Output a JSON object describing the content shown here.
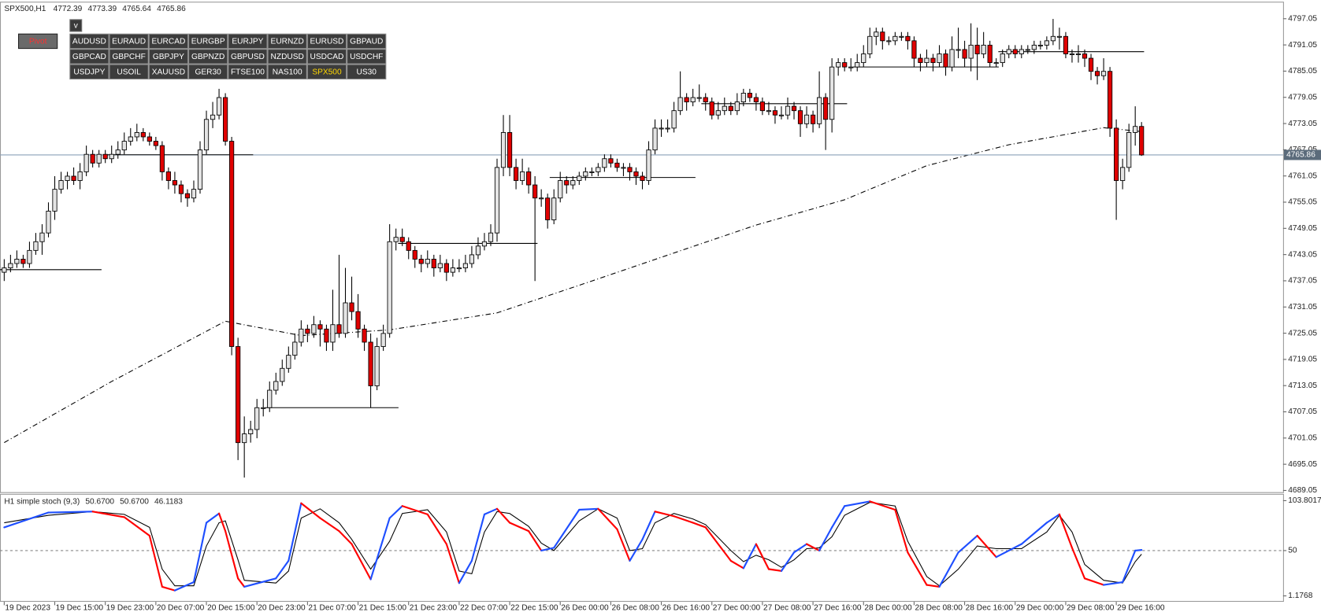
{
  "toolbar": {
    "pivot": "Pivot",
    "toggle": "v",
    "symbols": [
      [
        "AUDUSD",
        "EURAUD",
        "EURCAD",
        "EURGBP",
        "EURJPY",
        "EURNZD",
        "EURUSD",
        "GBPAUD"
      ],
      [
        "GBPCAD",
        "GBPCHF",
        "GBPJPY",
        "GBPNZD",
        "GBPUSD",
        "NZDUSD",
        "USDCAD",
        "USDCHF"
      ],
      [
        "USDJPY",
        "USOIL",
        "XAUUSD",
        "GER30",
        "FTSE100",
        "NAS100",
        "SPX500",
        "US30"
      ]
    ],
    "active": [
      2,
      6
    ],
    "active_color": "#ffd700"
  },
  "chart_data": {
    "type": "candlestick",
    "title": "SPX500,H1",
    "up_color": "#e4e4e4",
    "down_color": "#e00000",
    "ylim": [
      4688.66,
      4800.75
    ],
    "yticks": [
      4797.05,
      4791.05,
      4785.05,
      4779.05,
      4773.05,
      4767.05,
      4761.05,
      4755.05,
      4749.05,
      4743.05,
      4737.05,
      4731.05,
      4725.05,
      4719.05,
      4713.05,
      4707.05,
      4701.05,
      4695.05,
      4689.05
    ],
    "x_labels": [
      "19 Dec 2023",
      "19 Dec 15:00",
      "19 Dec 23:00",
      "20 Dec 07:00",
      "20 Dec 15:00",
      "20 Dec 23:00",
      "21 Dec 07:00",
      "21 Dec 15:00",
      "21 Dec 23:00",
      "22 Dec 07:00",
      "22 Dec 15:00",
      "26 Dec 00:00",
      "26 Dec 08:00",
      "26 Dec 16:00",
      "27 Dec 00:00",
      "27 Dec 08:00",
      "27 Dec 16:00",
      "28 Dec 00:00",
      "28 Dec 08:00",
      "28 Dec 16:00",
      "29 Dec 00:00",
      "29 Dec 08:00",
      "29 Dec 16:00"
    ],
    "ohlc": [
      [
        4739,
        4742,
        4737,
        4740
      ],
      [
        4740,
        4743,
        4739,
        4741
      ],
      [
        4741,
        4744,
        4740,
        4742
      ],
      [
        4742,
        4743,
        4740,
        4741
      ],
      [
        4741,
        4746,
        4740,
        4744
      ],
      [
        4744,
        4748,
        4743,
        4746
      ],
      [
        4746,
        4750,
        4743,
        4748
      ],
      [
        4748,
        4755,
        4747,
        4753
      ],
      [
        4753,
        4761,
        4751,
        4758
      ],
      [
        4758,
        4762,
        4757,
        4760
      ],
      [
        4760,
        4762,
        4758,
        4761
      ],
      [
        4761,
        4763,
        4759,
        4760
      ],
      [
        4760,
        4764,
        4758,
        4762
      ],
      [
        4762,
        4768,
        4761,
        4766
      ],
      [
        4766,
        4767,
        4763,
        4764
      ],
      [
        4764,
        4767,
        4763,
        4766
      ],
      [
        4766,
        4767,
        4764,
        4765
      ],
      [
        4765,
        4768,
        4764,
        4766
      ],
      [
        4766,
        4769,
        4765,
        4767
      ],
      [
        4767,
        4771,
        4766,
        4769
      ],
      [
        4769,
        4772,
        4768,
        4770
      ],
      [
        4770,
        4773,
        4769,
        4771
      ],
      [
        4771,
        4772,
        4769,
        4770
      ],
      [
        4770,
        4771,
        4768,
        4769
      ],
      [
        4769,
        4770,
        4767,
        4768
      ],
      [
        4768,
        4769,
        4760,
        4762
      ],
      [
        4762,
        4763,
        4758,
        4760
      ],
      [
        4760,
        4762,
        4757,
        4759
      ],
      [
        4759,
        4760,
        4755,
        4757
      ],
      [
        4757,
        4758,
        4754,
        4756
      ],
      [
        4756,
        4760,
        4755,
        4758
      ],
      [
        4758,
        4769,
        4757,
        4767
      ],
      [
        4767,
        4776,
        4766,
        4774
      ],
      [
        4774,
        4778,
        4772,
        4775
      ],
      [
        4775,
        4781,
        4774,
        4779
      ],
      [
        4779,
        4780,
        4768,
        4769
      ],
      [
        4769,
        4770,
        4720,
        4722
      ],
      [
        4722,
        4724,
        4696,
        4700
      ],
      [
        4700,
        4706,
        4692,
        4702
      ],
      [
        4702,
        4705,
        4700,
        4703
      ],
      [
        4703,
        4710,
        4701,
        4708
      ],
      [
        4708,
        4710,
        4706,
        4708
      ],
      [
        4708,
        4714,
        4707,
        4712
      ],
      [
        4712,
        4716,
        4711,
        4714
      ],
      [
        4714,
        4719,
        4713,
        4717
      ],
      [
        4717,
        4722,
        4716,
        4720
      ],
      [
        4720,
        4725,
        4719,
        4723
      ],
      [
        4723,
        4728,
        4722,
        4726
      ],
      [
        4726,
        4727,
        4723,
        4725
      ],
      [
        4725,
        4729,
        4724,
        4727
      ],
      [
        4727,
        4728,
        4722,
        4726
      ],
      [
        4726,
        4727,
        4721,
        4723
      ],
      [
        4723,
        4735,
        4721,
        4727
      ],
      [
        4727,
        4743,
        4724,
        4725
      ],
      [
        4725,
        4740,
        4724,
        4732
      ],
      [
        4732,
        4738,
        4728,
        4730
      ],
      [
        4730,
        4734,
        4724,
        4726
      ],
      [
        4726,
        4727,
        4721,
        4723
      ],
      [
        4723,
        4725,
        4708,
        4713
      ],
      [
        4713,
        4724,
        4712,
        4722
      ],
      [
        4722,
        4727,
        4721,
        4725
      ],
      [
        4725,
        4750,
        4724,
        4746
      ],
      [
        4746,
        4749,
        4744,
        4747
      ],
      [
        4747,
        4749,
        4745,
        4746
      ],
      [
        4746,
        4747,
        4742,
        4744
      ],
      [
        4744,
        4745,
        4740,
        4742
      ],
      [
        4742,
        4743,
        4739,
        4741
      ],
      [
        4741,
        4744,
        4740,
        4742
      ],
      [
        4742,
        4743,
        4738,
        4740
      ],
      [
        4740,
        4743,
        4739,
        4741
      ],
      [
        4741,
        4742,
        4737,
        4739
      ],
      [
        4739,
        4742,
        4738,
        4740
      ],
      [
        4740,
        4742,
        4739,
        4740
      ],
      [
        4740,
        4743,
        4739,
        4741
      ],
      [
        4741,
        4745,
        4740,
        4743
      ],
      [
        4743,
        4747,
        4742,
        4745
      ],
      [
        4745,
        4748,
        4744,
        4746
      ],
      [
        4746,
        4750,
        4745,
        4748
      ],
      [
        4748,
        4765,
        4746,
        4763
      ],
      [
        4763,
        4775,
        4761,
        4771
      ],
      [
        4771,
        4775,
        4761,
        4763
      ],
      [
        4763,
        4765,
        4758,
        4760
      ],
      [
        4760,
        4765,
        4759,
        4762
      ],
      [
        4762,
        4763,
        4757,
        4759
      ],
      [
        4759,
        4761,
        4737,
        4756
      ],
      [
        4756,
        4758,
        4754,
        4756
      ],
      [
        4756,
        4757,
        4749,
        4751
      ],
      [
        4751,
        4758,
        4750,
        4756
      ],
      [
        4756,
        4762,
        4755,
        4760
      ],
      [
        4760,
        4761,
        4757,
        4759
      ],
      [
        4759,
        4761,
        4758,
        4760
      ],
      [
        4760,
        4762,
        4759,
        4761
      ],
      [
        4761,
        4763,
        4760,
        4762
      ],
      [
        4762,
        4763,
        4761,
        4762
      ],
      [
        4762,
        4764,
        4761,
        4763
      ],
      [
        4763,
        4766,
        4762,
        4765
      ],
      [
        4765,
        4766,
        4763,
        4764
      ],
      [
        4764,
        4765,
        4762,
        4763
      ],
      [
        4763,
        4764,
        4761,
        4763
      ],
      [
        4763,
        4764,
        4760,
        4762
      ],
      [
        4762,
        4763,
        4759,
        4761
      ],
      [
        4761,
        4762,
        4758,
        4760
      ],
      [
        4760,
        4769,
        4759,
        4767
      ],
      [
        4767,
        4774,
        4766,
        4772
      ],
      [
        4772,
        4774,
        4770,
        4772
      ],
      [
        4772,
        4774,
        4771,
        4772
      ],
      [
        4772,
        4778,
        4771,
        4776
      ],
      [
        4776,
        4785,
        4775,
        4779
      ],
      [
        4779,
        4780,
        4776,
        4778
      ],
      [
        4778,
        4781,
        4777,
        4779
      ],
      [
        4779,
        4782,
        4778,
        4779
      ],
      [
        4779,
        4780,
        4776,
        4778
      ],
      [
        4778,
        4779,
        4774,
        4775
      ],
      [
        4775,
        4778,
        4774,
        4776
      ],
      [
        4776,
        4779,
        4775,
        4777
      ],
      [
        4777,
        4778,
        4775,
        4776
      ],
      [
        4776,
        4780,
        4775,
        4778
      ],
      [
        4778,
        4781,
        4777,
        4780
      ],
      [
        4780,
        4781,
        4778,
        4779
      ],
      [
        4779,
        4780,
        4776,
        4778
      ],
      [
        4778,
        4779,
        4775,
        4776
      ],
      [
        4776,
        4778,
        4775,
        4776
      ],
      [
        4776,
        4777,
        4773,
        4775
      ],
      [
        4775,
        4777,
        4774,
        4775
      ],
      [
        4775,
        4779,
        4774,
        4777
      ],
      [
        4777,
        4778,
        4774,
        4776
      ],
      [
        4776,
        4777,
        4770,
        4773
      ],
      [
        4773,
        4777,
        4772,
        4775
      ],
      [
        4775,
        4776,
        4771,
        4773
      ],
      [
        4773,
        4785,
        4772,
        4779
      ],
      [
        4779,
        4780,
        4767,
        4774
      ],
      [
        4774,
        4788,
        4771,
        4786
      ],
      [
        4786,
        4788,
        4784,
        4787
      ],
      [
        4787,
        4788,
        4785,
        4786
      ],
      [
        4786,
        4788,
        4785,
        4786
      ],
      [
        4786,
        4789,
        4785,
        4787
      ],
      [
        4787,
        4791,
        4786,
        4789
      ],
      [
        4789,
        4795,
        4788,
        4793
      ],
      [
        4793,
        4795,
        4791,
        4794
      ],
      [
        4794,
        4795,
        4790,
        4792
      ],
      [
        4792,
        4793,
        4791,
        4792
      ],
      [
        4792,
        4794,
        4791,
        4793
      ],
      [
        4793,
        4794,
        4792,
        4793
      ],
      [
        4793,
        4794,
        4790,
        4792
      ],
      [
        4792,
        4793,
        4786,
        4788
      ],
      [
        4788,
        4789,
        4785,
        4787
      ],
      [
        4787,
        4790,
        4786,
        4788
      ],
      [
        4788,
        4789,
        4785,
        4787
      ],
      [
        4787,
        4791,
        4786,
        4789
      ],
      [
        4789,
        4790,
        4784,
        4786
      ],
      [
        4786,
        4793,
        4785,
        4790
      ],
      [
        4790,
        4795,
        4788,
        4790
      ],
      [
        4790,
        4792,
        4786,
        4788
      ],
      [
        4788,
        4796,
        4785,
        4791
      ],
      [
        4791,
        4795,
        4783,
        4789
      ],
      [
        4789,
        4794,
        4788,
        4791
      ],
      [
        4791,
        4792,
        4786,
        4787
      ],
      [
        4787,
        4788,
        4786,
        4787
      ],
      [
        4787,
        4790,
        4786,
        4789
      ],
      [
        4789,
        4791,
        4788,
        4790
      ],
      [
        4790,
        4791,
        4788,
        4789
      ],
      [
        4789,
        4791,
        4788,
        4790
      ],
      [
        4790,
        4791,
        4789,
        4790
      ],
      [
        4790,
        4792,
        4789,
        4791
      ],
      [
        4791,
        4792,
        4790,
        4791
      ],
      [
        4791,
        4793,
        4790,
        4792
      ],
      [
        4792,
        4797,
        4791,
        4793
      ],
      [
        4793,
        4795,
        4790,
        4793
      ],
      [
        4793,
        4794,
        4788,
        4789
      ],
      [
        4789,
        4790,
        4787,
        4789
      ],
      [
        4789,
        4791,
        4787,
        4789
      ],
      [
        4789,
        4790,
        4786,
        4788
      ],
      [
        4788,
        4789,
        4783,
        4785
      ],
      [
        4785,
        4786,
        4782,
        4784
      ],
      [
        4784,
        4788,
        4783,
        4785
      ],
      [
        4785,
        4786,
        4770,
        4772
      ],
      [
        4772,
        4774,
        4751,
        4760
      ],
      [
        4760,
        4765,
        4758,
        4763
      ],
      [
        4763,
        4773,
        4762,
        4771
      ],
      [
        4771,
        4777,
        4768,
        4772.39
      ],
      [
        4772.39,
        4773.39,
        4765.64,
        4765.86
      ]
    ],
    "ma": {
      "x": [
        0,
        17,
        35,
        47,
        61,
        78,
        93,
        109,
        119,
        133,
        146,
        159,
        174,
        180
      ],
      "values": [
        4700,
        4714,
        4727.8,
        4724.5,
        4725.8,
        4729.7,
        4737,
        4744.9,
        4749.8,
        4755.6,
        4763.4,
        4768.2,
        4772.1,
        4771.2
      ]
    },
    "levels": [
      {
        "price": 4739.6,
        "start": 0,
        "end": 15
      },
      {
        "price": 4765.9,
        "start": 17,
        "end": 39
      },
      {
        "price": 4708,
        "start": 42,
        "end": 62
      },
      {
        "price": 4745.6,
        "start": 63,
        "end": 84
      },
      {
        "price": 4760.7,
        "start": 87,
        "end": 109
      },
      {
        "price": 4777.6,
        "start": 111,
        "end": 133
      },
      {
        "price": 4786,
        "start": 135,
        "end": 157
      },
      {
        "price": 4789.5,
        "start": 158,
        "end": 180
      }
    ],
    "stoch": {
      "title": "H1  simple stoch (9,3)",
      "header_values": [
        {
          "value": 50.67,
          "label": "50.6700"
        },
        {
          "value": 50.67,
          "label": "50.6700"
        },
        46.1183
      ],
      "ylim": [
        -5.2,
        110.2
      ],
      "yticks": [
        103.8017,
        50,
        1.1768
      ],
      "levels": [
        50
      ],
      "up_color": "#1f4fff",
      "down_color": "#ff0000",
      "d_color": "#000000",
      "x": [
        0,
        7,
        14,
        19,
        23,
        25,
        27,
        30,
        32,
        34,
        35,
        37,
        38,
        43,
        45,
        47,
        50,
        53,
        55,
        58,
        61,
        63,
        67,
        70,
        72,
        74,
        76,
        78,
        80,
        83,
        85,
        87,
        91,
        94,
        97,
        99,
        101,
        103,
        106,
        109,
        111,
        115,
        117,
        119,
        121,
        123,
        125,
        127,
        129,
        131,
        133,
        137,
        141,
        143,
        146,
        148,
        151,
        154,
        157,
        161,
        165,
        167,
        169,
        171,
        174,
        177,
        179,
        180
      ],
      "k": [
        75,
        91,
        92,
        86,
        66,
        11,
        7,
        16,
        80,
        90,
        71,
        20,
        11,
        20,
        39,
        101,
        85,
        71,
        57,
        19,
        85,
        98,
        89,
        57,
        15,
        39,
        89,
        95,
        80,
        71,
        50,
        53,
        94,
        95,
        73,
        39,
        62,
        92,
        87,
        80,
        75,
        39,
        31,
        57,
        30,
        28,
        48,
        57,
        50,
        75,
        98,
        103,
        94,
        48,
        13,
        11,
        48,
        66,
        43,
        57,
        80,
        89,
        53,
        20,
        13,
        16,
        50,
        50.67
      ],
      "d": [
        80,
        88,
        92,
        89,
        75,
        30,
        12,
        12,
        55,
        80,
        82,
        40,
        18,
        15,
        28,
        85,
        95,
        80,
        62,
        30,
        60,
        90,
        94,
        70,
        28,
        25,
        70,
        92,
        90,
        76,
        58,
        50,
        82,
        95,
        85,
        50,
        52,
        80,
        90,
        84,
        78,
        50,
        38,
        45,
        40,
        32,
        40,
        52,
        53,
        65,
        88,
        102,
        98,
        60,
        22,
        12,
        30,
        55,
        52,
        52,
        70,
        88,
        70,
        35,
        18,
        15,
        38,
        46.1183
      ]
    }
  }
}
